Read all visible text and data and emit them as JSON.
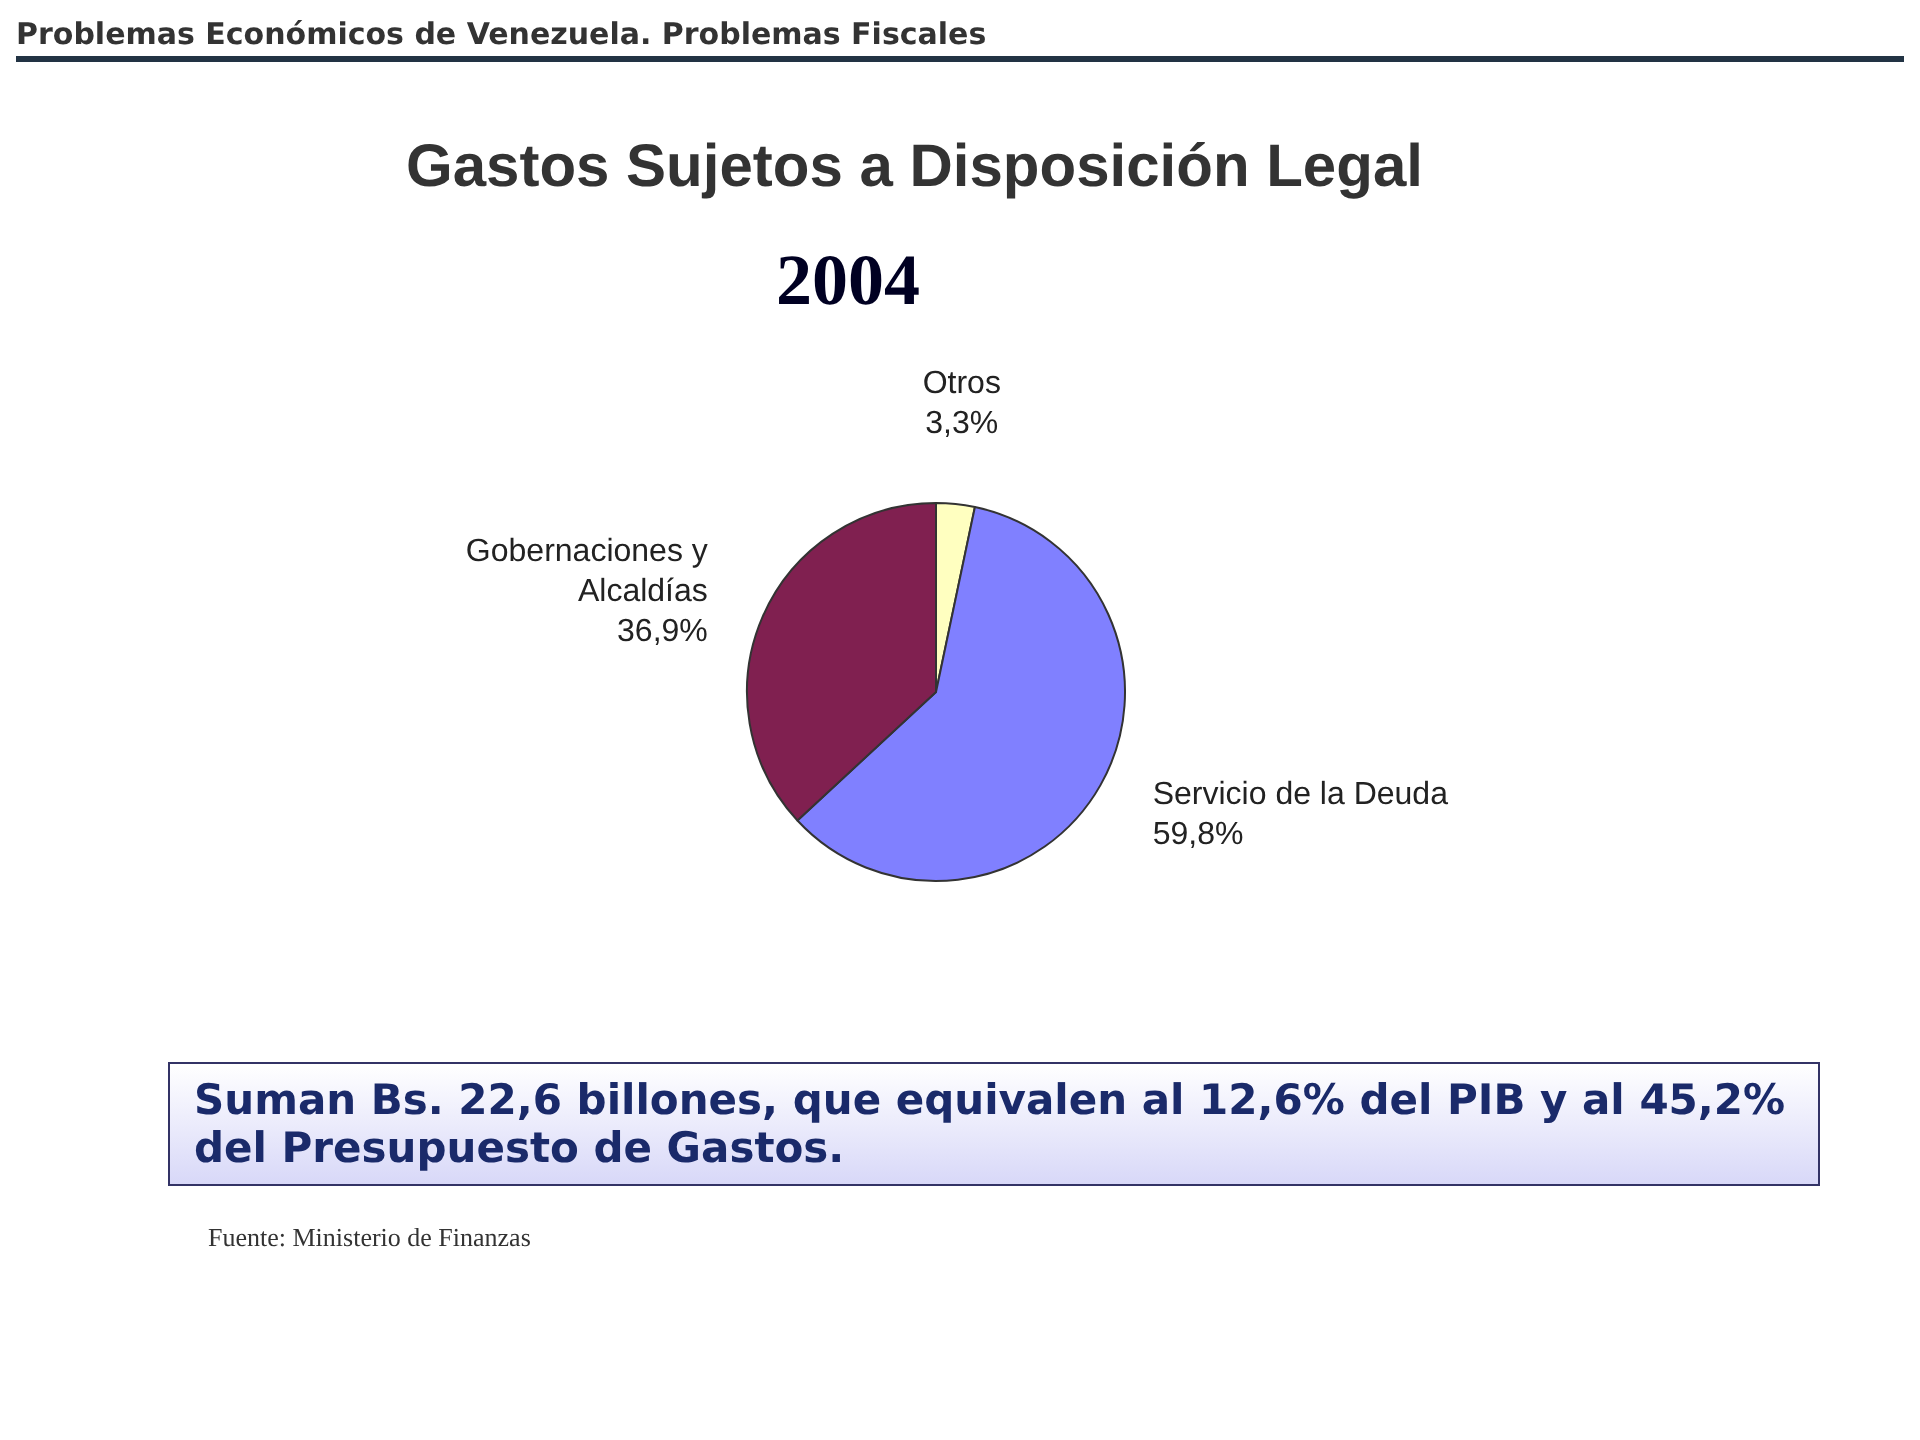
{
  "chart_data": {
    "type": "pie",
    "title": "Gastos Sujetos a Disposición Legal",
    "subtitle": "2004",
    "categories": [
      "Otros",
      "Servicio de la Deuda",
      "Gobernaciones y Alcaldías"
    ],
    "values": [
      3.3,
      59.8,
      36.9
    ],
    "value_labels": [
      "3,3%",
      "59,8%",
      "36,9%"
    ],
    "colors": [
      "#ffffc0",
      "#8080ff",
      "#802050"
    ],
    "legend": false,
    "annotations": [
      "Problemas Económicos de Venezuela.  Problemas Fiscales",
      "Suman Bs. 22,6 billones, que equivalen al 12,6% del PIB y al 45,2% del Presupuesto de Gastos.",
      "Fuente: Ministerio de Finanzas"
    ]
  }
}
